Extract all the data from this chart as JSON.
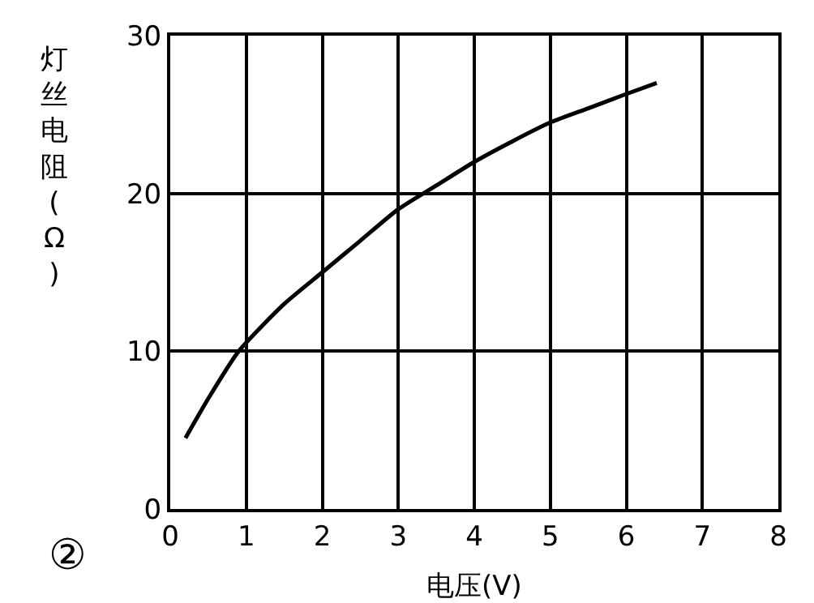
{
  "chart_data": {
    "type": "line",
    "xlabel": "电压(V)",
    "ylabel": "灯丝电阻(Ω)",
    "annotations": [
      "②"
    ],
    "x": [
      0.2,
      0.5,
      0.9,
      1.5,
      2,
      2.5,
      3,
      3.5,
      4,
      4.5,
      5,
      5.5,
      6,
      6.4
    ],
    "series": [
      {
        "color": "#000000",
        "values": [
          4.5,
          7,
          10,
          13,
          15,
          17,
          19,
          20.5,
          22,
          23.3,
          24.5,
          25.4,
          26.3,
          27
        ]
      }
    ],
    "xlim": [
      0,
      8
    ],
    "xticks": [
      0,
      1,
      2,
      3,
      4,
      5,
      6,
      7,
      8
    ],
    "ylim": [
      0,
      30
    ],
    "yticks": [
      0,
      10,
      20,
      30
    ],
    "grid": true,
    "marker": "none",
    "line_style": "solid"
  }
}
